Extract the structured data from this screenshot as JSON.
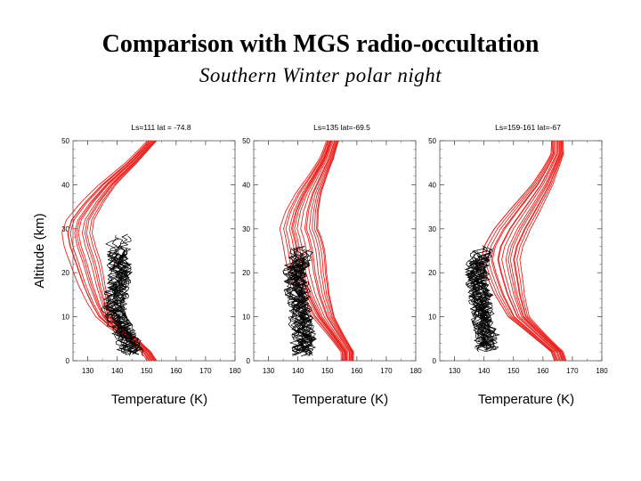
{
  "title": "Comparison with MGS radio-occultation",
  "subtitle": "Southern Winter polar night",
  "colors": {
    "model": "#e8231f",
    "observation": "#000000",
    "axis": "#555555"
  },
  "chart_data": [
    {
      "type": "line",
      "title": "Ls=111  lat = -74.8",
      "xlabel": "Temperature (K)",
      "ylabel": "Altitude (km)",
      "xlim": [
        125,
        180
      ],
      "ylim": [
        0,
        50
      ],
      "xticks": [
        130,
        140,
        150,
        160,
        170,
        180
      ],
      "yticks": [
        0,
        10,
        20,
        30,
        40,
        50
      ],
      "series": [
        {
          "role": "model",
          "color": "#e8231f",
          "count": 12,
          "y": [
            0,
            2,
            5,
            8,
            10,
            13,
            17,
            22,
            26,
            29,
            32,
            36,
            40,
            45,
            50
          ],
          "x": [
            152,
            150,
            145,
            139,
            136,
            134,
            132,
            130,
            128,
            127,
            128,
            132,
            137,
            145,
            152
          ]
        },
        {
          "role": "observation",
          "color": "#000000",
          "count": 22,
          "y": [
            1,
            4,
            8,
            12,
            16,
            20,
            24,
            27,
            29
          ],
          "x": [
            145,
            144,
            141,
            139,
            140,
            141,
            140,
            141,
            141
          ]
        }
      ]
    },
    {
      "type": "line",
      "title": "Ls=135 lat=-69.5",
      "xlabel": "Temperature (K)",
      "ylabel": "",
      "xlim": [
        125,
        180
      ],
      "ylim": [
        0,
        50
      ],
      "xticks": [
        130,
        140,
        150,
        160,
        170,
        180
      ],
      "yticks": [
        0,
        10,
        20,
        30,
        40,
        50
      ],
      "series": [
        {
          "role": "model",
          "color": "#e8231f",
          "count": 16,
          "y": [
            0,
            2,
            5,
            10,
            15,
            20,
            25,
            28,
            30,
            34,
            38,
            42,
            46,
            50
          ],
          "x": [
            157,
            157,
            154,
            149,
            146,
            144,
            143,
            142,
            141,
            142,
            144,
            147,
            150,
            152
          ]
        },
        {
          "role": "observation",
          "color": "#000000",
          "count": 22,
          "y": [
            1,
            5,
            10,
            15,
            20,
            24,
            27
          ],
          "x": [
            141,
            142,
            141,
            140,
            139,
            141,
            142
          ]
        }
      ]
    },
    {
      "type": "line",
      "title": "Ls=159-161  lat=-67",
      "xlabel": "Temperature (K)",
      "ylabel": "",
      "xlim": [
        125,
        180
      ],
      "ylim": [
        0,
        50
      ],
      "xticks": [
        130,
        140,
        150,
        160,
        170,
        180
      ],
      "yticks": [
        0,
        10,
        20,
        30,
        40,
        50
      ],
      "series": [
        {
          "role": "model",
          "color": "#e8231f",
          "count": 16,
          "y": [
            0,
            2,
            5,
            10,
            15,
            20,
            23,
            26,
            30,
            35,
            40,
            44,
            47,
            50
          ],
          "x": [
            166,
            165,
            160,
            152,
            149,
            147,
            146,
            147,
            150,
            155,
            160,
            163,
            165,
            165
          ]
        },
        {
          "role": "observation",
          "color": "#000000",
          "count": 24,
          "y": [
            2,
            6,
            10,
            14,
            18,
            22,
            25,
            27
          ],
          "x": [
            141,
            141,
            140,
            139,
            138,
            138,
            140,
            142
          ]
        }
      ]
    }
  ]
}
